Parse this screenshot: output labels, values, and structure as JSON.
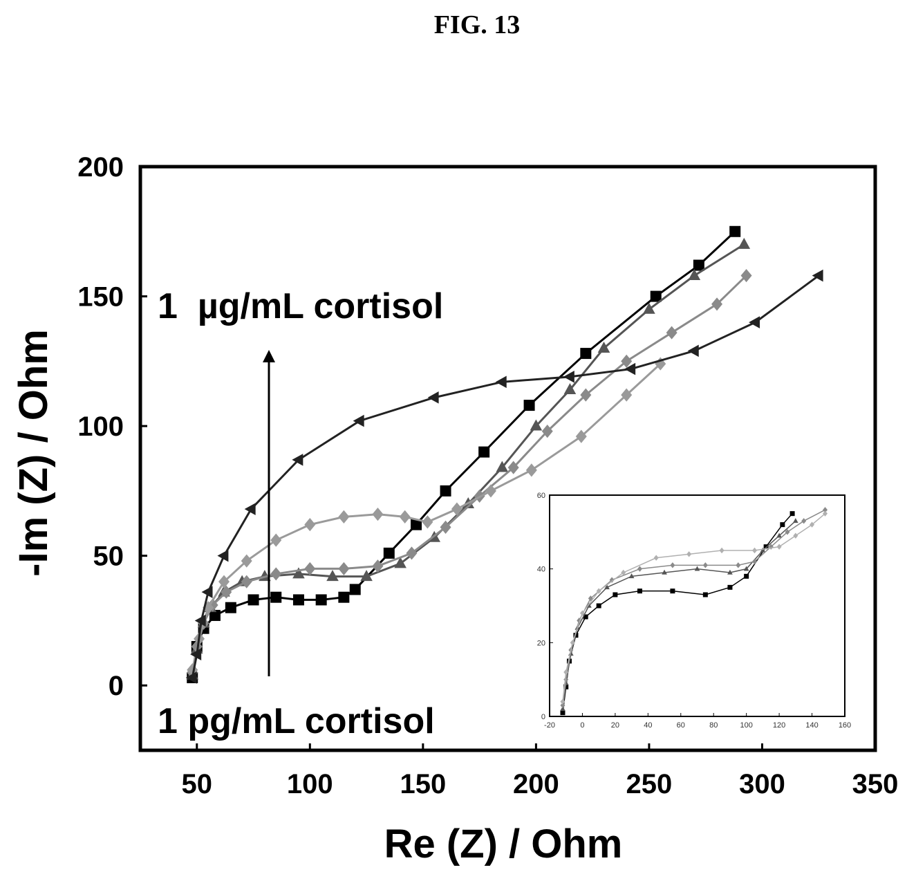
{
  "figure": {
    "title": "FIG. 13"
  },
  "chart_data": [
    {
      "type": "line",
      "xlabel": "Re (Z) / Ohm",
      "ylabel": "-Im (Z) / Ohm",
      "xlim": [
        25,
        350
      ],
      "ylim": [
        -25,
        200
      ],
      "xticks": [
        50,
        100,
        150,
        200,
        250,
        300,
        350
      ],
      "yticks": [
        0,
        50,
        100,
        150,
        200
      ],
      "annotations": [
        "1  µg/mL cortisol",
        "1 pg/mL cortisol"
      ],
      "series": [
        {
          "color": "#000000",
          "marker": "square",
          "stroke_width": 3,
          "points": [
            [
              48,
              3
            ],
            [
              50,
              15
            ],
            [
              53,
              22
            ],
            [
              58,
              27
            ],
            [
              65,
              30
            ],
            [
              75,
              33
            ],
            [
              85,
              34
            ],
            [
              95,
              33
            ],
            [
              105,
              33
            ],
            [
              115,
              34
            ],
            [
              120,
              37
            ],
            [
              135,
              51
            ],
            [
              147,
              62
            ],
            [
              160,
              75
            ],
            [
              177,
              90
            ],
            [
              197,
              108
            ],
            [
              222,
              128
            ],
            [
              253,
              150
            ],
            [
              272,
              162
            ],
            [
              288,
              175
            ]
          ]
        },
        {
          "color": "#555555",
          "marker": "triangle-up",
          "stroke_width": 3,
          "points": [
            [
              48,
              4
            ],
            [
              50,
              14
            ],
            [
              53,
              24
            ],
            [
              56,
              30
            ],
            [
              62,
              36
            ],
            [
              70,
              40
            ],
            [
              80,
              42
            ],
            [
              95,
              43
            ],
            [
              110,
              42
            ],
            [
              125,
              42
            ],
            [
              140,
              47
            ],
            [
              155,
              57
            ],
            [
              170,
              70
            ],
            [
              185,
              84
            ],
            [
              200,
              100
            ],
            [
              215,
              114
            ],
            [
              230,
              130
            ],
            [
              250,
              145
            ],
            [
              270,
              158
            ],
            [
              292,
              170
            ]
          ]
        },
        {
          "color": "#8a8a8a",
          "marker": "diamond",
          "stroke_width": 3,
          "points": [
            [
              48,
              5
            ],
            [
              50,
              15
            ],
            [
              53,
              24
            ],
            [
              57,
              31
            ],
            [
              63,
              36
            ],
            [
              72,
              40
            ],
            [
              85,
              43
            ],
            [
              100,
              45
            ],
            [
              115,
              45
            ],
            [
              130,
              46
            ],
            [
              145,
              51
            ],
            [
              160,
              61
            ],
            [
              175,
              73
            ],
            [
              190,
              84
            ],
            [
              205,
              98
            ],
            [
              222,
              112
            ],
            [
              240,
              125
            ],
            [
              260,
              136
            ],
            [
              280,
              147
            ],
            [
              293,
              158
            ]
          ]
        },
        {
          "color": "#9a9a9a",
          "marker": "diamond",
          "stroke_width": 3,
          "points": [
            [
              48,
              6
            ],
            [
              51,
              18
            ],
            [
              55,
              30
            ],
            [
              62,
              40
            ],
            [
              72,
              48
            ],
            [
              85,
              56
            ],
            [
              100,
              62
            ],
            [
              115,
              65
            ],
            [
              130,
              66
            ],
            [
              142,
              65
            ],
            [
              152,
              63
            ],
            [
              165,
              68
            ],
            [
              180,
              75
            ],
            [
              198,
              83
            ],
            [
              220,
              96
            ],
            [
              240,
              112
            ],
            [
              255,
              124
            ]
          ]
        },
        {
          "color": "#222222",
          "marker": "triangle-left",
          "stroke_width": 3,
          "points": [
            [
              48,
              3
            ],
            [
              50,
              12
            ],
            [
              52,
              25
            ],
            [
              55,
              36
            ],
            [
              62,
              50
            ],
            [
              74,
              68
            ],
            [
              95,
              87
            ],
            [
              122,
              102
            ],
            [
              155,
              111
            ],
            [
              185,
              117
            ],
            [
              215,
              119
            ],
            [
              242,
              122
            ],
            [
              270,
              129
            ],
            [
              297,
              140
            ],
            [
              325,
              158
            ]
          ]
        }
      ]
    },
    {
      "type": "line",
      "role": "inset",
      "xlim": [
        -20,
        160
      ],
      "ylim": [
        0,
        60
      ],
      "xticks": [
        -20,
        0,
        20,
        40,
        60,
        80,
        100,
        120,
        140,
        160
      ],
      "xticklabels": [
        "-20",
        "0",
        "20",
        "40",
        "60",
        "80",
        "100",
        "120",
        "140",
        "160"
      ],
      "yticks": [
        0,
        20,
        40,
        60
      ],
      "yticklabels": [
        "0",
        "20",
        "40",
        "60"
      ],
      "series": [
        {
          "color": "#000000",
          "marker": "square",
          "stroke_width": 1.5,
          "points": [
            [
              -12,
              1
            ],
            [
              -10,
              8
            ],
            [
              -8,
              15
            ],
            [
              -4,
              22
            ],
            [
              2,
              27
            ],
            [
              10,
              30
            ],
            [
              20,
              33
            ],
            [
              35,
              34
            ],
            [
              55,
              34
            ],
            [
              75,
              33
            ],
            [
              90,
              35
            ],
            [
              100,
              38
            ],
            [
              112,
              46
            ],
            [
              122,
              52
            ],
            [
              128,
              55
            ]
          ]
        },
        {
          "color": "#555555",
          "marker": "triangle-up",
          "stroke_width": 1.5,
          "points": [
            [
              -12,
              2
            ],
            [
              -10,
              9
            ],
            [
              -7,
              17
            ],
            [
              -3,
              24
            ],
            [
              4,
              30
            ],
            [
              15,
              35
            ],
            [
              30,
              38
            ],
            [
              50,
              39
            ],
            [
              70,
              40
            ],
            [
              90,
              39
            ],
            [
              100,
              40
            ],
            [
              110,
              45
            ],
            [
              120,
              49
            ],
            [
              130,
              53
            ]
          ]
        },
        {
          "color": "#8a8a8a",
          "marker": "diamond",
          "stroke_width": 1.5,
          "points": [
            [
              -12,
              3
            ],
            [
              -10,
              10
            ],
            [
              -7,
              18
            ],
            [
              -2,
              26
            ],
            [
              5,
              32
            ],
            [
              18,
              37
            ],
            [
              35,
              40
            ],
            [
              55,
              41
            ],
            [
              75,
              41
            ],
            [
              95,
              41
            ],
            [
              105,
              42
            ],
            [
              115,
              46
            ],
            [
              125,
              50
            ],
            [
              135,
              53
            ],
            [
              148,
              56
            ]
          ]
        },
        {
          "color": "#b0b0b0",
          "marker": "diamond",
          "stroke_width": 1.5,
          "points": [
            [
              -12,
              4
            ],
            [
              -10,
              12
            ],
            [
              -6,
              20
            ],
            [
              0,
              28
            ],
            [
              10,
              34
            ],
            [
              25,
              39
            ],
            [
              45,
              43
            ],
            [
              65,
              44
            ],
            [
              85,
              45
            ],
            [
              105,
              45
            ],
            [
              120,
              46
            ],
            [
              130,
              49
            ],
            [
              140,
              52
            ],
            [
              148,
              55
            ]
          ]
        }
      ]
    }
  ]
}
